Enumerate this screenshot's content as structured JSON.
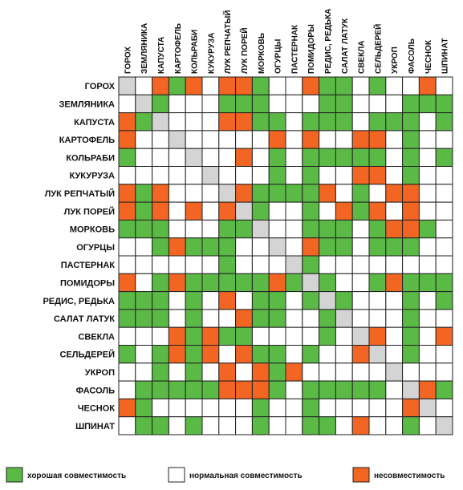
{
  "chart_data": {
    "type": "heatmap",
    "title": "",
    "colors": {
      "good": "#5aba45",
      "normal": "#ffffff",
      "bad": "#f26522",
      "self": "#d4d4d4",
      "grid": "#222222"
    },
    "rows": [
      "ГОРОХ",
      "ЗЕМЛЯНИКА",
      "КАПУСТА",
      "КАРТОФЕЛЬ",
      "КОЛЬРАБИ",
      "КУКУРУЗА",
      "ЛУК РЕПЧАТЫЙ",
      "ЛУК ПОРЕЙ",
      "МОРКОВЬ",
      "ОГУРЦЫ",
      "ПАСТЕРНАК",
      "ПОМИДОРЫ",
      "РЕДИС, РЕДЬКА",
      "САЛАТ ЛАТУК",
      "СВЕКЛА",
      "СЕЛЬДЕРЕЙ",
      "УКРОП",
      "ФАСОЛЬ",
      "ЧЕСНОК",
      "ШПИНАТ"
    ],
    "columns": [
      "ГОРОХ",
      "ЗЕМЛЯНИКА",
      "КАПУСТА",
      "КАРТОФЕЛЬ",
      "КОЛЬРАБИ",
      "КУКУРУЗА",
      "ЛУК РЕПЧАТЫЙ",
      "ЛУК ПОРЕЙ",
      "МОРКОВЬ",
      "ОГУРЦЫ",
      "ПАСТЕРНАК",
      "ПОМИДОРЫ",
      "РЕДИС, РЕДЬКА",
      "САЛАТ ЛАТУК",
      "СВЕКЛА",
      "СЕЛЬДЕРЕЙ",
      "УКРОП",
      "ФАСОЛЬ",
      "ЧЕСНОК",
      "ШПИНАТ"
    ],
    "values": [
      [
        "s",
        "n",
        "b",
        "g",
        "b",
        "n",
        "b",
        "b",
        "g",
        "n",
        "n",
        "b",
        "g",
        "g",
        "n",
        "g",
        "n",
        "n",
        "b",
        "n"
      ],
      [
        "n",
        "s",
        "g",
        "n",
        "n",
        "n",
        "g",
        "g",
        "g",
        "n",
        "n",
        "n",
        "g",
        "g",
        "n",
        "n",
        "n",
        "g",
        "g",
        "g"
      ],
      [
        "b",
        "g",
        "s",
        "n",
        "n",
        "n",
        "b",
        "b",
        "g",
        "g",
        "n",
        "g",
        "g",
        "g",
        "n",
        "g",
        "g",
        "g",
        "n",
        "g"
      ],
      [
        "b",
        "n",
        "n",
        "s",
        "n",
        "n",
        "n",
        "n",
        "n",
        "b",
        "n",
        "b",
        "n",
        "n",
        "b",
        "b",
        "n",
        "g",
        "n",
        "n"
      ],
      [
        "g",
        "n",
        "n",
        "n",
        "s",
        "n",
        "n",
        "b",
        "n",
        "g",
        "n",
        "g",
        "g",
        "g",
        "g",
        "g",
        "n",
        "g",
        "n",
        "g"
      ],
      [
        "n",
        "n",
        "n",
        "n",
        "n",
        "s",
        "n",
        "n",
        "n",
        "g",
        "n",
        "g",
        "n",
        "n",
        "b",
        "b",
        "n",
        "g",
        "n",
        "n"
      ],
      [
        "b",
        "g",
        "b",
        "n",
        "n",
        "n",
        "s",
        "b",
        "g",
        "g",
        "g",
        "g",
        "b",
        "n",
        "g",
        "n",
        "b",
        "b",
        "n",
        "n"
      ],
      [
        "b",
        "g",
        "b",
        "n",
        "b",
        "n",
        "b",
        "s",
        "g",
        "n",
        "n",
        "g",
        "n",
        "b",
        "g",
        "b",
        "n",
        "b",
        "n",
        "n"
      ],
      [
        "g",
        "g",
        "g",
        "n",
        "n",
        "n",
        "g",
        "g",
        "s",
        "n",
        "n",
        "g",
        "g",
        "g",
        "n",
        "g",
        "b",
        "b",
        "g",
        "n"
      ],
      [
        "n",
        "n",
        "g",
        "b",
        "g",
        "g",
        "g",
        "n",
        "n",
        "s",
        "n",
        "b",
        "g",
        "g",
        "n",
        "g",
        "g",
        "g",
        "n",
        "n"
      ],
      [
        "n",
        "n",
        "n",
        "n",
        "n",
        "n",
        "g",
        "n",
        "n",
        "n",
        "s",
        "g",
        "n",
        "n",
        "n",
        "n",
        "n",
        "n",
        "n",
        "n"
      ],
      [
        "b",
        "n",
        "g",
        "b",
        "g",
        "g",
        "g",
        "g",
        "g",
        "b",
        "g",
        "s",
        "g",
        "n",
        "n",
        "g",
        "b",
        "g",
        "g",
        "g"
      ],
      [
        "g",
        "g",
        "g",
        "n",
        "g",
        "n",
        "b",
        "n",
        "g",
        "g",
        "n",
        "g",
        "s",
        "g",
        "n",
        "n",
        "n",
        "g",
        "n",
        "g"
      ],
      [
        "g",
        "g",
        "g",
        "n",
        "g",
        "n",
        "n",
        "b",
        "g",
        "g",
        "n",
        "n",
        "g",
        "s",
        "n",
        "n",
        "n",
        "g",
        "n",
        "n"
      ],
      [
        "n",
        "n",
        "n",
        "b",
        "g",
        "b",
        "g",
        "g",
        "n",
        "n",
        "n",
        "n",
        "g",
        "n",
        "s",
        "b",
        "n",
        "g",
        "n",
        "b"
      ],
      [
        "g",
        "n",
        "g",
        "b",
        "g",
        "b",
        "n",
        "b",
        "g",
        "g",
        "n",
        "g",
        "n",
        "n",
        "b",
        "s",
        "n",
        "g",
        "n",
        "n"
      ],
      [
        "n",
        "n",
        "g",
        "n",
        "g",
        "n",
        "b",
        "n",
        "b",
        "g",
        "b",
        "n",
        "n",
        "n",
        "n",
        "n",
        "s",
        "n",
        "n",
        "n"
      ],
      [
        "n",
        "g",
        "g",
        "g",
        "g",
        "g",
        "b",
        "b",
        "b",
        "g",
        "n",
        "g",
        "g",
        "g",
        "g",
        "g",
        "n",
        "s",
        "b",
        "g"
      ],
      [
        "b",
        "g",
        "n",
        "n",
        "n",
        "n",
        "n",
        "n",
        "g",
        "n",
        "n",
        "g",
        "n",
        "n",
        "n",
        "n",
        "n",
        "b",
        "s",
        "n"
      ],
      [
        "n",
        "g",
        "g",
        "n",
        "g",
        "n",
        "n",
        "n",
        "g",
        "n",
        "n",
        "g",
        "g",
        "n",
        "b",
        "n",
        "n",
        "g",
        "n",
        "s"
      ]
    ],
    "legend": [
      {
        "key": "good",
        "label": "хорошая совместимость"
      },
      {
        "key": "normal",
        "label": "нормальная совместимость"
      },
      {
        "key": "bad",
        "label": "несовместимость"
      }
    ],
    "legend_position": "bottom"
  }
}
